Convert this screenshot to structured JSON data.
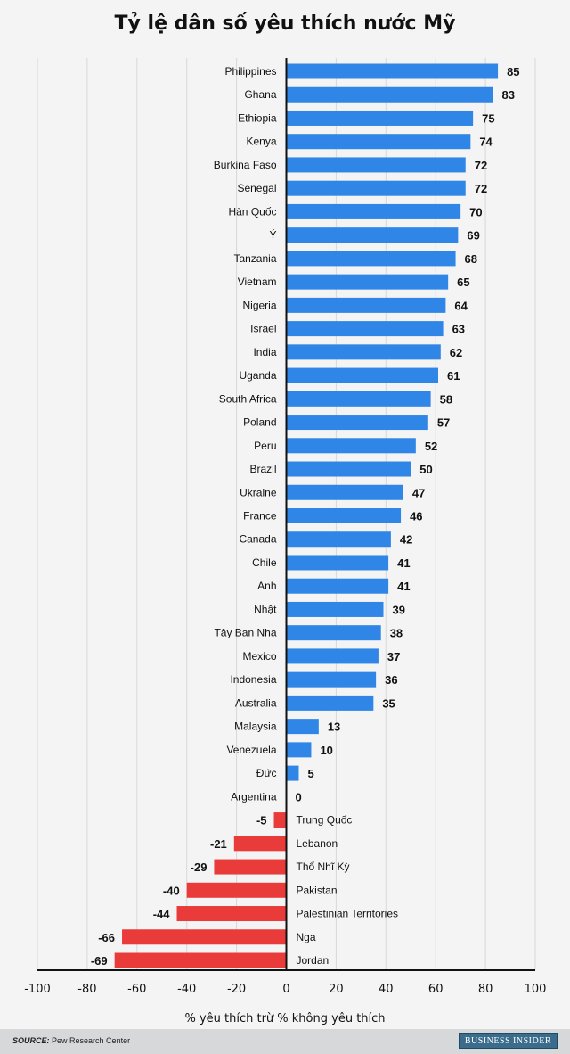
{
  "chart_data": {
    "type": "bar",
    "orientation": "horizontal",
    "title": "Tỷ lệ dân số yêu thích nước Mỹ",
    "xlabel": "% yêu thích trừ % không yêu thích",
    "ylabel": "",
    "xlim": [
      -100,
      100
    ],
    "xticks": [
      -100,
      -80,
      -60,
      -40,
      -20,
      0,
      20,
      40,
      60,
      80,
      100
    ],
    "grid": true,
    "colors": {
      "positive": "#2f86e6",
      "negative": "#ea3b3b"
    },
    "categories": [
      "Philippines",
      "Ghana",
      "Ethiopia",
      "Kenya",
      "Burkina Faso",
      "Senegal",
      "Hàn Quốc",
      "Ý",
      "Tanzania",
      "Vietnam",
      "Nigeria",
      "Israel",
      "India",
      "Uganda",
      "South Africa",
      "Poland",
      "Peru",
      "Brazil",
      "Ukraine",
      "France",
      "Canada",
      "Chile",
      "Anh",
      "Nhật",
      "Tây Ban Nha",
      "Mexico",
      "Indonesia",
      "Australia",
      "Malaysia",
      "Venezuela",
      "Đức",
      "Argentina",
      "Trung Quốc",
      "Lebanon",
      "Thổ Nhĩ Kỳ",
      "Pakistan",
      "Palestinian Territories",
      "Nga",
      "Jordan"
    ],
    "values": [
      85,
      83,
      75,
      74,
      72,
      72,
      70,
      69,
      68,
      65,
      64,
      63,
      62,
      61,
      58,
      57,
      52,
      50,
      47,
      46,
      42,
      41,
      41,
      39,
      38,
      37,
      36,
      35,
      13,
      10,
      5,
      0,
      -5,
      -21,
      -29,
      -40,
      -44,
      -66,
      -69
    ]
  },
  "footer": {
    "source_label": "SOURCE:",
    "source": "Pew Research Center",
    "brand": "BUSINESS INSIDER"
  }
}
